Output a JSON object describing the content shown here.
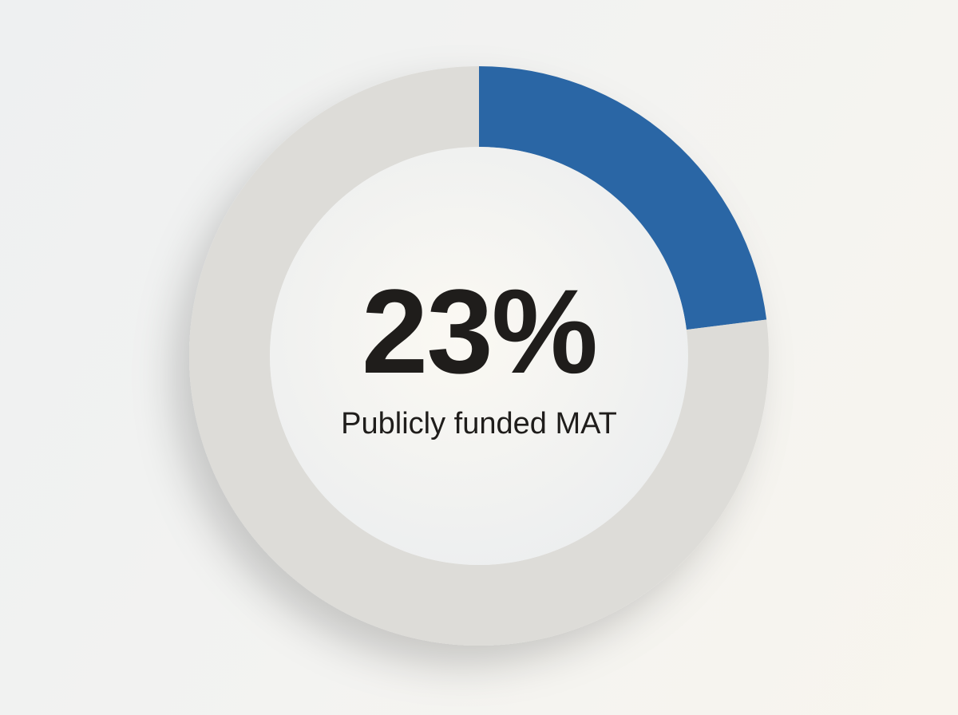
{
  "chart_data": {
    "type": "pie",
    "variant": "donut",
    "categories": [
      "Publicly funded MAT",
      ""
    ],
    "values": [
      23,
      77
    ],
    "colors": [
      "#2b66a5",
      "#dddcd8"
    ],
    "center_value": "23%",
    "center_label": "Publicly funded MAT"
  }
}
